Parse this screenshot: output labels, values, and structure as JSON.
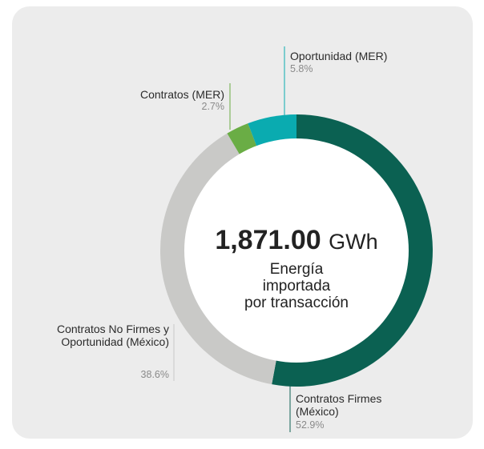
{
  "chart_data": {
    "type": "pie",
    "donut": true,
    "center_value": "1,871.00",
    "center_unit": "GWh",
    "center_caption": [
      "Energía",
      "importada",
      "por transacción"
    ],
    "categories": [
      "Contratos Firmes (México)",
      "Contratos No Firmes y Oportunidad (México)",
      "Contratos (MER)",
      "Oportunidad (MER)"
    ],
    "values": [
      52.9,
      38.6,
      2.7,
      5.8
    ],
    "value_labels": [
      "52.9%",
      "38.6%",
      "2.7%",
      "5.8%"
    ],
    "colors": [
      "#0b6152",
      "#c9c9c7",
      "#6aad45",
      "#0aabb0"
    ]
  }
}
